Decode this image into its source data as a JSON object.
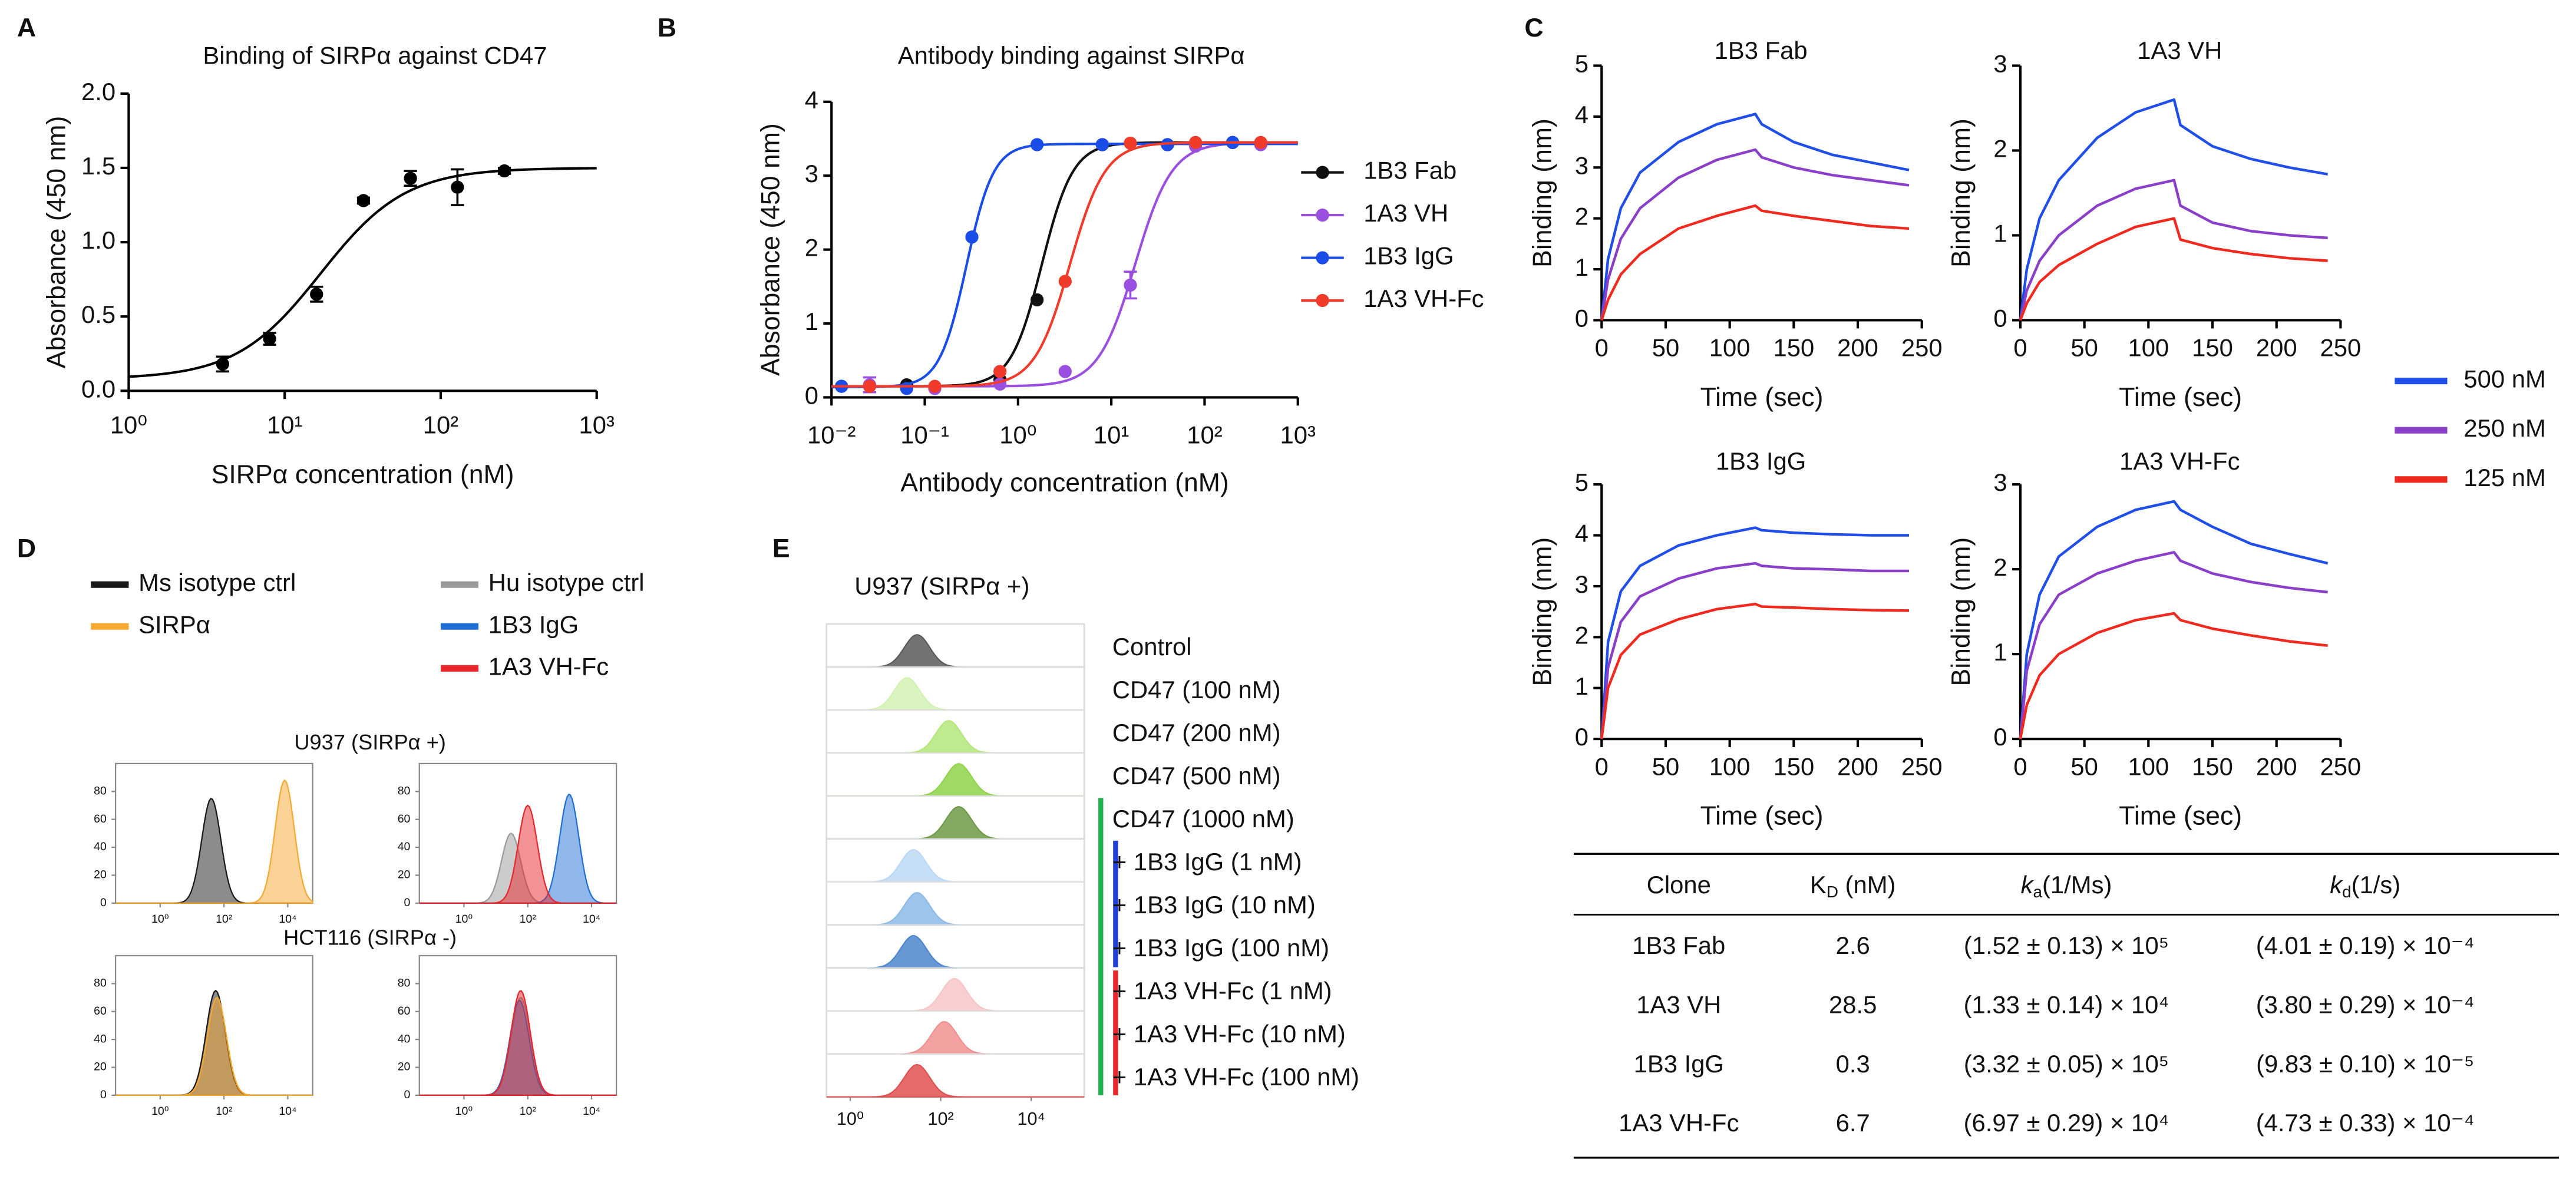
{
  "panel_labels": [
    "A",
    "B",
    "C",
    "D",
    "E"
  ],
  "chart_data": [
    {
      "type": "scatter",
      "title": "Binding of SIRPα against CD47",
      "xlabel": "SIRPα concentration (nM)",
      "ylabel": "Absorbance  (450 nm)",
      "xscale": "log",
      "xlim": [
        1,
        1000
      ],
      "xticks": [
        {
          "value": 1,
          "label": "10⁰"
        },
        {
          "value": 10,
          "label": "10¹"
        },
        {
          "value": 100,
          "label": "10²"
        },
        {
          "value": 1000,
          "label": "10³"
        }
      ],
      "ylim": [
        0,
        2
      ],
      "yticks": [
        {
          "value": 0,
          "label": "0.0"
        },
        0.5,
        {
          "value": 1,
          "label": "1.0"
        },
        1.5,
        {
          "value": 2,
          "label": "2.0"
        }
      ],
      "frame": "open",
      "series": [
        {
          "color": "#000000",
          "x": [
            4,
            8,
            16,
            32,
            64,
            128,
            256
          ],
          "values": [
            0.18,
            0.35,
            0.65,
            1.28,
            1.43,
            1.37,
            1.48
          ],
          "errors": [
            0.05,
            0.04,
            0.05,
            0.02,
            0.05,
            0.12,
            0.02
          ],
          "fit": {
            "bottom": 0.08,
            "top": 1.5,
            "ec50": 17,
            "hill": 1.6
          }
        }
      ]
    },
    {
      "type": "scatter",
      "title": "Antibody binding against SIRPα",
      "xlabel": "Antibody concentration (nM)",
      "ylabel": "Absorbance  (450 nm)",
      "xscale": "log",
      "xlim": [
        0.01,
        1000
      ],
      "xticks": [
        {
          "value": 0.01,
          "label": "10⁻²"
        },
        {
          "value": 0.1,
          "label": "10⁻¹"
        },
        {
          "value": 1,
          "label": "10⁰"
        },
        {
          "value": 10,
          "label": "10¹"
        },
        {
          "value": 100,
          "label": "10²"
        },
        {
          "value": 1000,
          "label": "10³"
        }
      ],
      "ylim": [
        0,
        4
      ],
      "yticks": [
        0,
        1,
        2,
        3,
        4
      ],
      "frame": "open",
      "legend": "right",
      "series": [
        {
          "name": "1B3 Fab",
          "color": "#111111",
          "x": [
            0.0128,
            0.064,
            0.64,
            1.6,
            8,
            40,
            200
          ],
          "values": [
            0.15,
            0.17,
            0.24,
            1.32,
            3.42,
            3.42,
            3.45
          ],
          "errors": [
            null,
            null,
            null,
            null,
            null,
            null,
            null
          ],
          "fit": {
            "bottom": 0.15,
            "top": 3.45,
            "ec50": 1.8,
            "hill": 2.6
          }
        },
        {
          "name": "1A3 VH",
          "color": "#9b4fe0",
          "x": [
            0.0256,
            0.128,
            0.64,
            3.2,
            16,
            80,
            400
          ],
          "values": [
            0.17,
            0.12,
            0.18,
            0.35,
            1.52,
            3.4,
            3.42
          ],
          "errors": [
            0.1,
            null,
            null,
            null,
            0.18,
            null,
            null
          ],
          "fit": {
            "bottom": 0.15,
            "top": 3.45,
            "ec50": 18,
            "hill": 2.2
          }
        },
        {
          "name": "1B3 IgG",
          "color": "#1a4de8",
          "x": [
            0.0128,
            0.064,
            0.32,
            1.6,
            8,
            40,
            200
          ],
          "values": [
            0.15,
            0.12,
            2.17,
            3.42,
            3.42,
            3.42,
            3.45
          ],
          "errors": [
            null,
            null,
            null,
            null,
            null,
            null,
            null
          ],
          "fit": {
            "bottom": 0.14,
            "top": 3.43,
            "ec50": 0.28,
            "hill": 3
          }
        },
        {
          "name": "1A3 VH-Fc",
          "color": "#f03a2a",
          "x": [
            0.0256,
            0.128,
            0.64,
            3.2,
            16,
            80,
            400
          ],
          "values": [
            0.15,
            0.15,
            0.35,
            1.57,
            3.44,
            3.45,
            3.45
          ],
          "errors": [
            null,
            null,
            null,
            null,
            null,
            null,
            null
          ],
          "fit": {
            "bottom": 0.15,
            "top": 3.45,
            "ec50": 3.6,
            "hill": 2.3
          }
        }
      ]
    },
    {
      "type": "line",
      "title": "1B3 Fab",
      "xlabel": "Time (sec)",
      "ylabel": "Binding (nm)",
      "xlim": [
        0,
        250
      ],
      "xticks": [
        0,
        50,
        100,
        150,
        200,
        250
      ],
      "ylim": [
        0,
        5
      ],
      "yticks": [
        0,
        1,
        2,
        3,
        4,
        5
      ],
      "frame": "open",
      "legend": "right",
      "x": [
        0,
        5,
        15,
        30,
        60,
        90,
        120,
        125,
        150,
        180,
        210,
        240
      ],
      "series": [
        {
          "name": "500 nM",
          "color": "#1f4fe8",
          "values": [
            0,
            1.2,
            2.2,
            2.9,
            3.5,
            3.85,
            4.05,
            3.85,
            3.5,
            3.25,
            3.1,
            2.95
          ]
        },
        {
          "name": "250 nM",
          "color": "#8a3fc8",
          "values": [
            0,
            0.8,
            1.6,
            2.2,
            2.8,
            3.15,
            3.35,
            3.2,
            3.0,
            2.85,
            2.75,
            2.65
          ]
        },
        {
          "name": "125 nM",
          "color": "#f02a1e",
          "values": [
            0,
            0.4,
            0.9,
            1.3,
            1.8,
            2.05,
            2.25,
            2.15,
            2.05,
            1.95,
            1.85,
            1.8
          ]
        }
      ]
    },
    {
      "type": "line",
      "title": "1A3 VH",
      "xlabel": "Time (sec)",
      "ylabel": "Binding (nm)",
      "xlim": [
        0,
        250
      ],
      "xticks": [
        0,
        50,
        100,
        150,
        200,
        250
      ],
      "ylim": [
        0,
        3
      ],
      "yticks": [
        0,
        1,
        2,
        3
      ],
      "frame": "open",
      "x": [
        0,
        5,
        15,
        30,
        60,
        90,
        120,
        125,
        150,
        180,
        210,
        240
      ],
      "series": [
        {
          "name": "500 nM",
          "color": "#1f4fe8",
          "values": [
            0,
            0.6,
            1.2,
            1.65,
            2.15,
            2.45,
            2.6,
            2.3,
            2.05,
            1.9,
            1.8,
            1.72
          ]
        },
        {
          "name": "250 nM",
          "color": "#8a3fc8",
          "values": [
            0,
            0.35,
            0.7,
            1.0,
            1.35,
            1.55,
            1.65,
            1.35,
            1.15,
            1.05,
            1.0,
            0.97
          ]
        },
        {
          "name": "125 nM",
          "color": "#f02a1e",
          "values": [
            0,
            0.2,
            0.45,
            0.65,
            0.9,
            1.1,
            1.2,
            0.95,
            0.85,
            0.78,
            0.73,
            0.7
          ]
        }
      ]
    },
    {
      "type": "line",
      "title": "1B3 IgG",
      "xlabel": "Time (sec)",
      "ylabel": "Binding (nm)",
      "xlim": [
        0,
        250
      ],
      "xticks": [
        0,
        50,
        100,
        150,
        200,
        250
      ],
      "ylim": [
        0,
        5
      ],
      "yticks": [
        0,
        1,
        2,
        3,
        4,
        5
      ],
      "frame": "open",
      "x": [
        0,
        5,
        15,
        30,
        60,
        90,
        120,
        125,
        150,
        180,
        210,
        240
      ],
      "series": [
        {
          "name": "500 nM",
          "color": "#1f4fe8",
          "values": [
            0,
            1.9,
            2.9,
            3.4,
            3.8,
            4.0,
            4.15,
            4.1,
            4.05,
            4.02,
            4.0,
            4.0
          ]
        },
        {
          "name": "250 nM",
          "color": "#8a3fc8",
          "values": [
            0,
            1.4,
            2.3,
            2.8,
            3.15,
            3.35,
            3.45,
            3.4,
            3.35,
            3.33,
            3.3,
            3.3
          ]
        },
        {
          "name": "125 nM",
          "color": "#f02a1e",
          "values": [
            0,
            1.0,
            1.65,
            2.05,
            2.35,
            2.55,
            2.65,
            2.6,
            2.58,
            2.55,
            2.53,
            2.52
          ]
        }
      ]
    },
    {
      "type": "line",
      "title": "1A3 VH-Fc",
      "xlabel": "Time (sec)",
      "ylabel": "Binding (nm)",
      "xlim": [
        0,
        250
      ],
      "xticks": [
        0,
        50,
        100,
        150,
        200,
        250
      ],
      "ylim": [
        0,
        3
      ],
      "yticks": [
        0,
        1,
        2,
        3
      ],
      "frame": "open",
      "x": [
        0,
        5,
        15,
        30,
        60,
        90,
        120,
        125,
        150,
        180,
        210,
        240
      ],
      "series": [
        {
          "name": "500 nM",
          "color": "#1f4fe8",
          "values": [
            0,
            1.0,
            1.7,
            2.15,
            2.5,
            2.7,
            2.8,
            2.7,
            2.5,
            2.3,
            2.18,
            2.07
          ]
        },
        {
          "name": "250 nM",
          "color": "#8a3fc8",
          "values": [
            0,
            0.8,
            1.35,
            1.7,
            1.95,
            2.1,
            2.2,
            2.1,
            1.95,
            1.85,
            1.78,
            1.73
          ]
        },
        {
          "name": "125 nM",
          "color": "#f02a1e",
          "values": [
            0,
            0.4,
            0.75,
            1.0,
            1.25,
            1.4,
            1.48,
            1.4,
            1.3,
            1.22,
            1.15,
            1.1
          ]
        }
      ]
    },
    {
      "type": "density",
      "title": "U937 (SIRPα +)",
      "xscale": "log",
      "xlim": [
        0.04,
        60000
      ],
      "xticks": [
        {
          "value": 1,
          "label": "10⁰"
        },
        {
          "value": 100,
          "label": "10²"
        },
        {
          "value": 10000,
          "label": "10⁴"
        }
      ],
      "ylim": [
        0,
        100
      ],
      "yticks": [
        0,
        20,
        40,
        60,
        80
      ],
      "frame": "box",
      "series": [
        {
          "name": "Ms isotype ctrl",
          "color": "#1a1a1a",
          "peak": 40,
          "height": 75
        },
        {
          "name": "SIRPα",
          "color": "#f7a830",
          "peak": 8000,
          "height": 88
        }
      ]
    },
    {
      "type": "density",
      "xscale": "log",
      "xlim": [
        0.04,
        60000
      ],
      "xticks": [
        {
          "value": 1,
          "label": "10⁰"
        },
        {
          "value": 100,
          "label": "10²"
        },
        {
          "value": 10000,
          "label": "10⁴"
        }
      ],
      "ylim": [
        0,
        100
      ],
      "yticks": [
        0,
        20,
        40,
        60,
        80
      ],
      "frame": "box",
      "series": [
        {
          "name": "Hu isotype ctrl",
          "color": "#9a9a9a",
          "peak": 30,
          "height": 50
        },
        {
          "name": "1B3 IgG",
          "color": "#1f6fd6",
          "peak": 2000,
          "height": 78
        },
        {
          "name": "1A3 VH-Fc",
          "color": "#e8262b",
          "peak": 100,
          "height": 70
        }
      ]
    },
    {
      "type": "density",
      "title": "HCT116 (SIRPα -)",
      "xscale": "log",
      "xlim": [
        0.04,
        60000
      ],
      "xticks": [
        {
          "value": 1,
          "label": "10⁰"
        },
        {
          "value": 100,
          "label": "10²"
        },
        {
          "value": 10000,
          "label": "10⁴"
        }
      ],
      "ylim": [
        0,
        100
      ],
      "yticks": [
        0,
        20,
        40,
        60,
        80
      ],
      "frame": "box",
      "series": [
        {
          "name": "Ms isotype ctrl",
          "color": "#1a1a1a",
          "peak": 55,
          "height": 75
        },
        {
          "name": "SIRPα",
          "color": "#f7a830",
          "peak": 60,
          "height": 70
        }
      ]
    },
    {
      "type": "density",
      "xscale": "log",
      "xlim": [
        0.04,
        60000
      ],
      "xticks": [
        {
          "value": 1,
          "label": "10⁰"
        },
        {
          "value": 100,
          "label": "10²"
        },
        {
          "value": 10000,
          "label": "10⁴"
        }
      ],
      "ylim": [
        0,
        100
      ],
      "yticks": [
        0,
        20,
        40,
        60,
        80
      ],
      "frame": "box",
      "series": [
        {
          "name": "Hu isotype ctrl",
          "color": "#9a9a9a",
          "peak": 60,
          "height": 70
        },
        {
          "name": "1B3 IgG",
          "color": "#1f6fd6",
          "peak": 55,
          "height": 68
        },
        {
          "name": "1A3 VH-Fc",
          "color": "#e8262b",
          "peak": 60,
          "height": 75
        }
      ]
    },
    {
      "type": "ridgeline",
      "title": "U937 (SIRPα +)",
      "xscale": "log",
      "xlim": [
        0.3,
        150000
      ],
      "xticks": [
        {
          "value": 1,
          "label": "10⁰"
        },
        {
          "value": 100,
          "label": "10²"
        },
        {
          "value": 10000,
          "label": "10⁴"
        }
      ],
      "frame": "box",
      "rows": [
        {
          "name": "Control",
          "color": "#5a5a5a",
          "peak": 30
        },
        {
          "name": "CD47 (100 nM)",
          "color": "#d2f2b4",
          "peak": 18
        },
        {
          "name": "CD47 (200 nM)",
          "color": "#b4e77a",
          "peak": 150
        },
        {
          "name": "CD47 (500 nM)",
          "color": "#8fd44a",
          "peak": 250
        },
        {
          "name": "CD47 (1000 nM)",
          "color": "#6d9a48",
          "peak": 250
        },
        {
          "name": "+ 1B3 IgG (1 nM)",
          "color": "#bcd8f5",
          "peak": 25
        },
        {
          "name": "+ 1B3 IgG (10 nM)",
          "color": "#8cbbe8",
          "peak": 30
        },
        {
          "name": "+ 1B3 IgG (100 nM)",
          "color": "#4d86cc",
          "peak": 25
        },
        {
          "name": "+ 1A3 VH-Fc (1 nM)",
          "color": "#f7c6c6",
          "peak": 200
        },
        {
          "name": "+ 1A3 VH-Fc (10 nM)",
          "color": "#f29090",
          "peak": 120
        },
        {
          "name": "+ 1A3 VH-Fc (100 nM)",
          "color": "#e05050",
          "peak": 30
        }
      ]
    }
  ],
  "table": {
    "columns": [
      "Clone",
      {
        "main": "K",
        "sub": "D",
        "rest": " (nM)"
      },
      {
        "main": "k",
        "sub": "a",
        "rest": "(1/Ms)"
      },
      {
        "main": "k",
        "sub": "d",
        "rest": "(1/s)"
      }
    ],
    "rows": [
      [
        "1B3 Fab",
        2.6,
        "(1.52 ± 0.13) × 10⁵",
        "(4.01 ± 0.19) × 10⁻⁴"
      ],
      [
        "1A3 VH",
        28.5,
        "(1.33 ± 0.14) × 10⁴",
        "(3.80 ± 0.29) × 10⁻⁴"
      ],
      [
        "1B3 IgG",
        0.3,
        "(3.32 ± 0.05) × 10⁵",
        "(9.83 ± 0.10) × 10⁻⁵"
      ],
      [
        "1A3 VH-Fc",
        6.7,
        "(6.97 ± 0.29) × 10⁴",
        "(4.73 ± 0.33) × 10⁻⁴"
      ]
    ]
  }
}
